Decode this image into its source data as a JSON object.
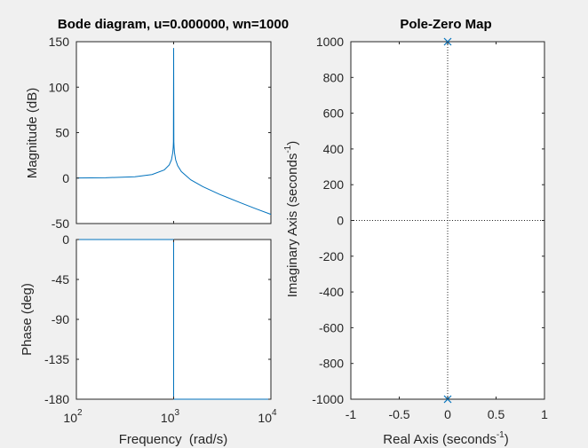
{
  "colors": {
    "series": "#0072bd",
    "axis": "#262626",
    "background": "#f0f0f0"
  },
  "chart_data": [
    {
      "type": "line",
      "panel": "bode-magnitude",
      "title": "Bode diagram, u=0.000000, wn=1000",
      "ylabel": "Magnitude (dB)",
      "xscale": "log",
      "xlim": [
        100,
        10000
      ],
      "ylim": [
        -50,
        150
      ],
      "yticks": [
        "150",
        "100",
        "50",
        "0",
        "-50"
      ],
      "x": [
        100,
        200,
        400,
        600,
        800,
        900,
        950,
        980,
        990,
        995,
        1000,
        1005,
        1010,
        1020,
        1050,
        1100,
        1200,
        1500,
        2000,
        3000,
        5000,
        7000,
        10000
      ],
      "values": [
        0.1,
        0.4,
        1.5,
        3.9,
        8.9,
        14.4,
        20.2,
        28.2,
        34.0,
        40.0,
        143,
        40.0,
        34.0,
        28.1,
        19.9,
        13.6,
        7.2,
        -1.9,
        -9.5,
        -18.1,
        -27.6,
        -33.7,
        -39.9
      ]
    },
    {
      "type": "line",
      "panel": "bode-phase",
      "xlabel": "Frequency  (rad/s)",
      "ylabel": "Phase (deg)",
      "xscale": "log",
      "xlim": [
        100,
        10000
      ],
      "ylim": [
        -180,
        0
      ],
      "xticks": [
        {
          "base": "10",
          "exp": "2"
        },
        {
          "base": "10",
          "exp": "3"
        },
        {
          "base": "10",
          "exp": "4"
        }
      ],
      "yticks": [
        "0",
        "-45",
        "-90",
        "-135",
        "-180"
      ],
      "x": [
        100,
        999.9,
        1000,
        1000.1,
        10000
      ],
      "values": [
        0,
        0,
        -90,
        -180,
        -180
      ]
    },
    {
      "type": "scatter",
      "panel": "pole-zero-map",
      "title": "Pole-Zero Map",
      "xlabel": {
        "text": "Real Axis (seconds",
        "sup": "-1",
        "close": ")"
      },
      "ylabel": {
        "text": "Imaginary Axis (seconds",
        "sup": "-1",
        "close": ")"
      },
      "xlim": [
        -1,
        1
      ],
      "ylim": [
        -1000,
        1000
      ],
      "xticks": [
        "-1",
        "-0.5",
        "0",
        "0.5",
        "1"
      ],
      "yticks": [
        "1000",
        "800",
        "600",
        "400",
        "200",
        "0",
        "-200",
        "-400",
        "-600",
        "-800",
        "-1000"
      ],
      "poles": [
        {
          "real": 0,
          "imag": 1000
        },
        {
          "real": 0,
          "imag": -1000
        }
      ],
      "marker": "x"
    }
  ]
}
